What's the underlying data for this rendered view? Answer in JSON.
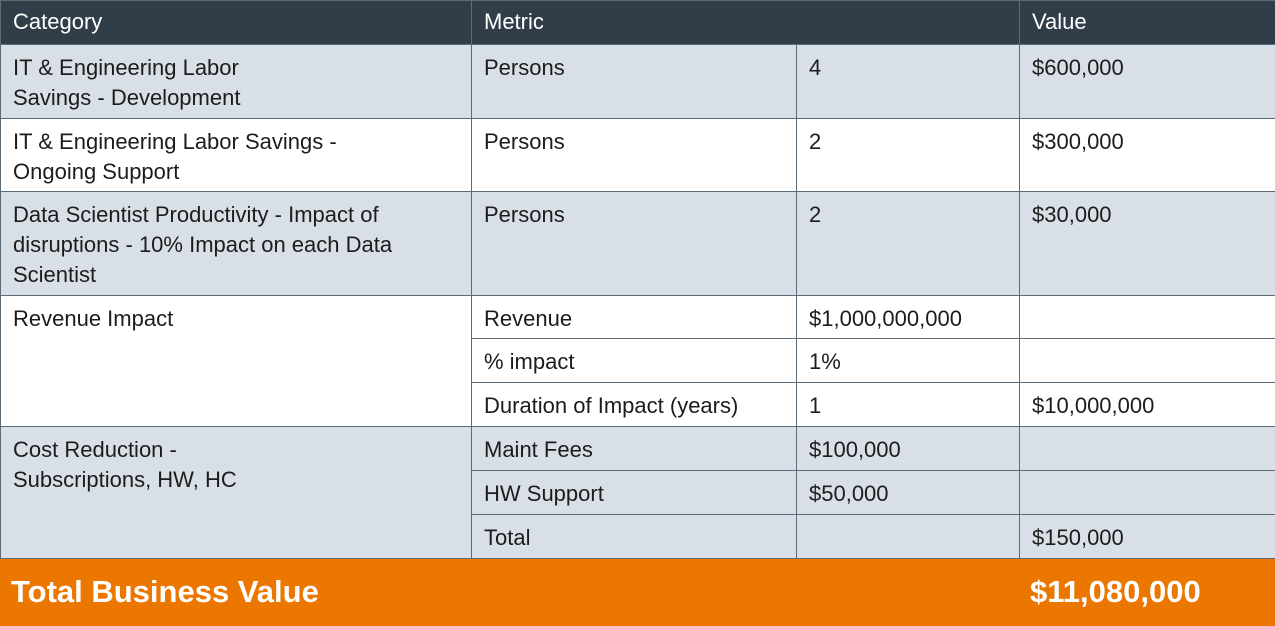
{
  "header": {
    "category": "Category",
    "metric": "Metric",
    "value": "Value"
  },
  "rows": {
    "it_dev": {
      "category": "IT & Engineering Labor Savings - Development",
      "metric": "Persons",
      "amount": "4",
      "value": "$600,000"
    },
    "it_support": {
      "category": "IT & Engineering Labor Savings - Ongoing Support",
      "metric": "Persons",
      "amount": "2",
      "value": "$300,000"
    },
    "data_scientist": {
      "category": "Data Scientist Productivity - Impact of disruptions - 10% Impact on each Data Scientist",
      "metric": "Persons",
      "amount": "2",
      "value": "$30,000"
    },
    "revenue_impact": {
      "category": "Revenue Impact",
      "lines": [
        {
          "metric": "Revenue",
          "amount": "$1,000,000,000",
          "value": ""
        },
        {
          "metric": "% impact",
          "amount": "1%",
          "value": ""
        },
        {
          "metric": "Duration of Impact (years)",
          "amount": "1",
          "value": "$10,000,000"
        }
      ]
    },
    "cost_reduction": {
      "category": "Cost Reduction - Subscriptions, HW, HC",
      "lines": [
        {
          "metric": "Maint Fees",
          "amount": "$100,000",
          "value": ""
        },
        {
          "metric": "HW Support",
          "amount": "$50,000",
          "value": ""
        },
        {
          "metric": "Total",
          "amount": "",
          "value": "$150,000"
        }
      ]
    }
  },
  "total": {
    "label": "Total Business Value",
    "value": "$11,080,000"
  },
  "colors": {
    "header_bg": "#313d48",
    "shaded_row": "#d9dfe6",
    "total_bg": "#ec7700"
  }
}
